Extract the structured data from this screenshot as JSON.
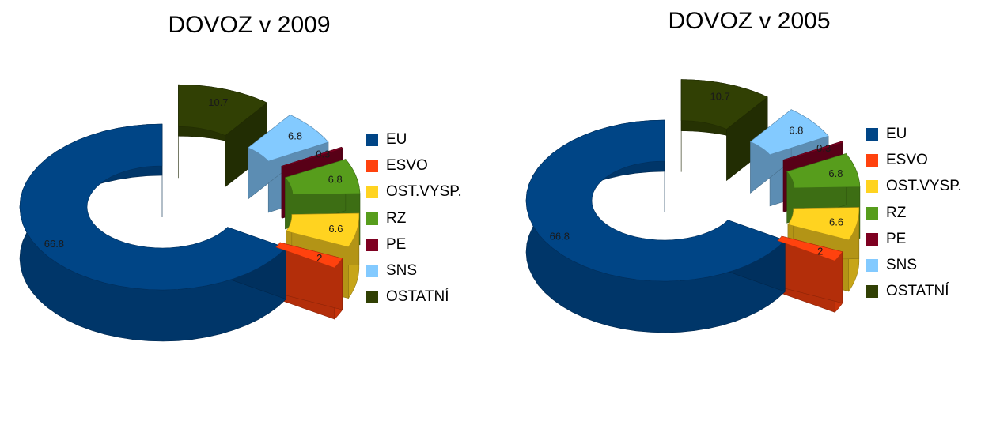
{
  "chart_data": [
    {
      "type": "pie",
      "title": "DOVOZ v 2009",
      "categories": [
        "EU",
        "ESVO",
        "OST.VYSP.",
        "RZ",
        "PE",
        "SNS",
        "OSTATNÍ"
      ],
      "values": [
        66.8,
        2,
        6.6,
        6.8,
        0.3,
        6.8,
        10.7
      ],
      "colors": [
        "#004586",
        "#ff420e",
        "#ffd320",
        "#579d1c",
        "#7e0021",
        "#83caff",
        "#314004"
      ],
      "legend": "right",
      "style": "3d-donut-exploded"
    },
    {
      "type": "pie",
      "title": "DOVOZ v 2005",
      "categories": [
        "EU",
        "ESVO",
        "OST.VYSP.",
        "RZ",
        "PE",
        "SNS",
        "OSTATNÍ"
      ],
      "values": [
        66.8,
        2,
        6.6,
        6.8,
        0.3,
        6.8,
        10.7
      ],
      "colors": [
        "#004586",
        "#ff420e",
        "#ffd320",
        "#579d1c",
        "#7e0021",
        "#83caff",
        "#314004"
      ],
      "legend": "right",
      "style": "3d-donut-exploded"
    }
  ]
}
